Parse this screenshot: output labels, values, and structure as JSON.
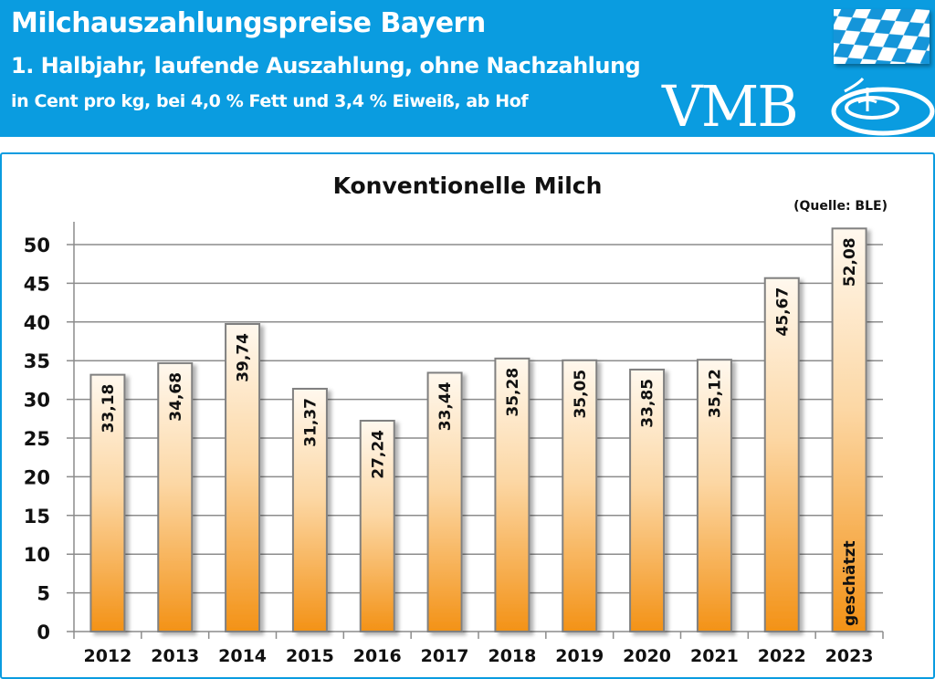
{
  "header": {
    "title": "Milchauszahlungspreise Bayern",
    "subtitle": "1. Halbjahr, laufende Auszahlung, ohne Nachzahlung",
    "unit_line": "in Cent pro kg, bei 4,0 % Fett und 3,4 % Eiweiß, ab Hof",
    "logo_text": "VMB",
    "background_color": "#0a9ce0"
  },
  "chart_data": {
    "type": "bar",
    "title": "Konventionelle Milch",
    "source": "(Quelle: BLE)",
    "categories": [
      "2012",
      "2013",
      "2014",
      "2015",
      "2016",
      "2017",
      "2018",
      "2019",
      "2020",
      "2021",
      "2022",
      "2023"
    ],
    "values": [
      33.18,
      34.68,
      39.74,
      31.37,
      27.24,
      33.44,
      35.28,
      35.05,
      33.85,
      35.12,
      45.67,
      52.08
    ],
    "data_labels": [
      "33,18",
      "34,68",
      "39,74",
      "31,37",
      "27,24",
      "33,44",
      "35,28",
      "35,05",
      "33,85",
      "35,12",
      "45,67",
      "52,08"
    ],
    "annotations": [
      {
        "category": "2023",
        "text": "geschätzt"
      }
    ],
    "ylim": [
      0,
      50
    ],
    "yticks": [
      "0",
      "5",
      "10",
      "15",
      "20",
      "25",
      "30",
      "35",
      "40",
      "45",
      "50"
    ],
    "grid": true,
    "colors": {
      "bar_top": "#fff6ea",
      "bar_bottom": "#f39216",
      "bar_outline": "#808080",
      "grid": "#8c8c8c"
    }
  }
}
